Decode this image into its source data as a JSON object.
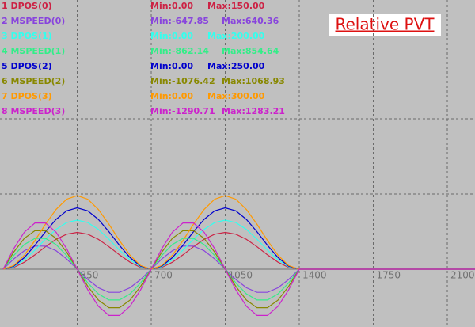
{
  "chart_data": {
    "type": "line",
    "title": "Relative PVT",
    "x": [
      0,
      50,
      100,
      150,
      200,
      250,
      300,
      350,
      400,
      450,
      500,
      550,
      600,
      650,
      700,
      750,
      800,
      850,
      900,
      950,
      1000,
      1050,
      1100,
      1150,
      1200,
      1250,
      1300,
      1350,
      1400,
      2231
    ],
    "xlim": [
      -15,
      2231
    ],
    "xticks": [
      350,
      700,
      1050,
      1400,
      1750,
      2100
    ],
    "ylim": [
      -235.5,
      1096.8
    ],
    "y2lim": [
      -1570,
      7312
    ],
    "grid": true,
    "series": [
      {
        "name": "1 DPOS(0)",
        "min_label": "Min:0.00",
        "max_label": "Max:150.00",
        "color": "#cc2244",
        "values": [
          0,
          7.4,
          28.2,
          58.3,
          91.7,
          121.8,
          142.6,
          150,
          142.6,
          121.8,
          91.7,
          58.3,
          28.2,
          7.4,
          0,
          7.4,
          28.2,
          58.3,
          91.7,
          121.8,
          142.6,
          150,
          142.6,
          121.8,
          91.7,
          58.3,
          28.2,
          7.4,
          0,
          0
        ]
      },
      {
        "name": "2 MSPEED(0)",
        "min_label": "Min:-647.85",
        "max_label": "Max:640.36",
        "color": "#8844dd",
        "axis": "y2",
        "values": [
          0,
          279,
          503,
          628,
          628,
          503,
          279,
          0,
          -279,
          -503,
          -628,
          -628,
          -503,
          -279,
          0,
          279,
          503,
          628,
          628,
          503,
          279,
          0,
          -279,
          -503,
          -628,
          -628,
          -503,
          -279,
          0,
          0
        ]
      },
      {
        "name": "3 DPOS(1)",
        "min_label": "Min:0.00",
        "max_label": "Max:200.00",
        "color": "#33ffee",
        "values": [
          0,
          9.9,
          37.7,
          77.7,
          122.3,
          162.3,
          190.1,
          200,
          190.1,
          162.3,
          122.3,
          77.7,
          37.7,
          9.9,
          0,
          9.9,
          37.7,
          77.7,
          122.3,
          162.3,
          190.1,
          200,
          190.1,
          162.3,
          122.3,
          77.7,
          37.7,
          9.9,
          0,
          0
        ]
      },
      {
        "name": "4 MSPEED(1)",
        "min_label": "Min:-862.14",
        "max_label": "Max:854.64",
        "color": "#33ee88",
        "axis": "y2",
        "values": [
          0,
          372,
          671,
          836,
          836,
          671,
          372,
          0,
          -372,
          -671,
          -836,
          -836,
          -671,
          -372,
          0,
          372,
          671,
          836,
          836,
          671,
          372,
          0,
          -372,
          -671,
          -836,
          -836,
          -671,
          -372,
          0,
          0
        ]
      },
      {
        "name": "5 DPOS(2)",
        "min_label": "Min:0.00",
        "max_label": "Max:250.00",
        "color": "#0000cc",
        "values": [
          0,
          12.4,
          47.1,
          97.2,
          152.8,
          202.9,
          237.6,
          250,
          237.6,
          202.9,
          152.8,
          97.2,
          47.1,
          12.4,
          0,
          12.4,
          47.1,
          97.2,
          152.8,
          202.9,
          237.6,
          250,
          237.6,
          202.9,
          152.8,
          97.2,
          47.1,
          12.4,
          0,
          0
        ]
      },
      {
        "name": "6 MSPEED(2)",
        "min_label": "Min:-1076.42",
        "max_label": "Max:1068.93",
        "color": "#888800",
        "axis": "y2",
        "values": [
          0,
          465,
          838,
          1045,
          1045,
          838,
          465,
          0,
          -465,
          -838,
          -1045,
          -1045,
          -838,
          -465,
          0,
          465,
          838,
          1045,
          1045,
          838,
          465,
          0,
          -465,
          -838,
          -1045,
          -1045,
          -838,
          -465,
          0,
          0
        ]
      },
      {
        "name": "7 DPOS(3)",
        "min_label": "Min:0.00",
        "max_label": "Max:300.00",
        "color": "#ff9900",
        "values": [
          0,
          14.9,
          56.5,
          116.6,
          183.4,
          243.5,
          285.2,
          300,
          285.2,
          243.5,
          183.4,
          116.6,
          56.5,
          14.9,
          0,
          14.9,
          56.5,
          116.6,
          183.4,
          243.5,
          285.2,
          300,
          285.2,
          243.5,
          183.4,
          116.6,
          56.5,
          14.9,
          0,
          0
        ]
      },
      {
        "name": "8 MSPEED(3)",
        "min_label": "Min:-1290.71",
        "max_label": "Max:1283.21",
        "color": "#cc22cc",
        "axis": "y2",
        "values": [
          0,
          558,
          1006,
          1255,
          1255,
          1006,
          558,
          0,
          -558,
          -1006,
          -1255,
          -1255,
          -1006,
          -558,
          0,
          558,
          1006,
          1255,
          1255,
          1006,
          558,
          0,
          -558,
          -1006,
          -1255,
          -1255,
          -1006,
          -558,
          0,
          0
        ]
      }
    ]
  }
}
